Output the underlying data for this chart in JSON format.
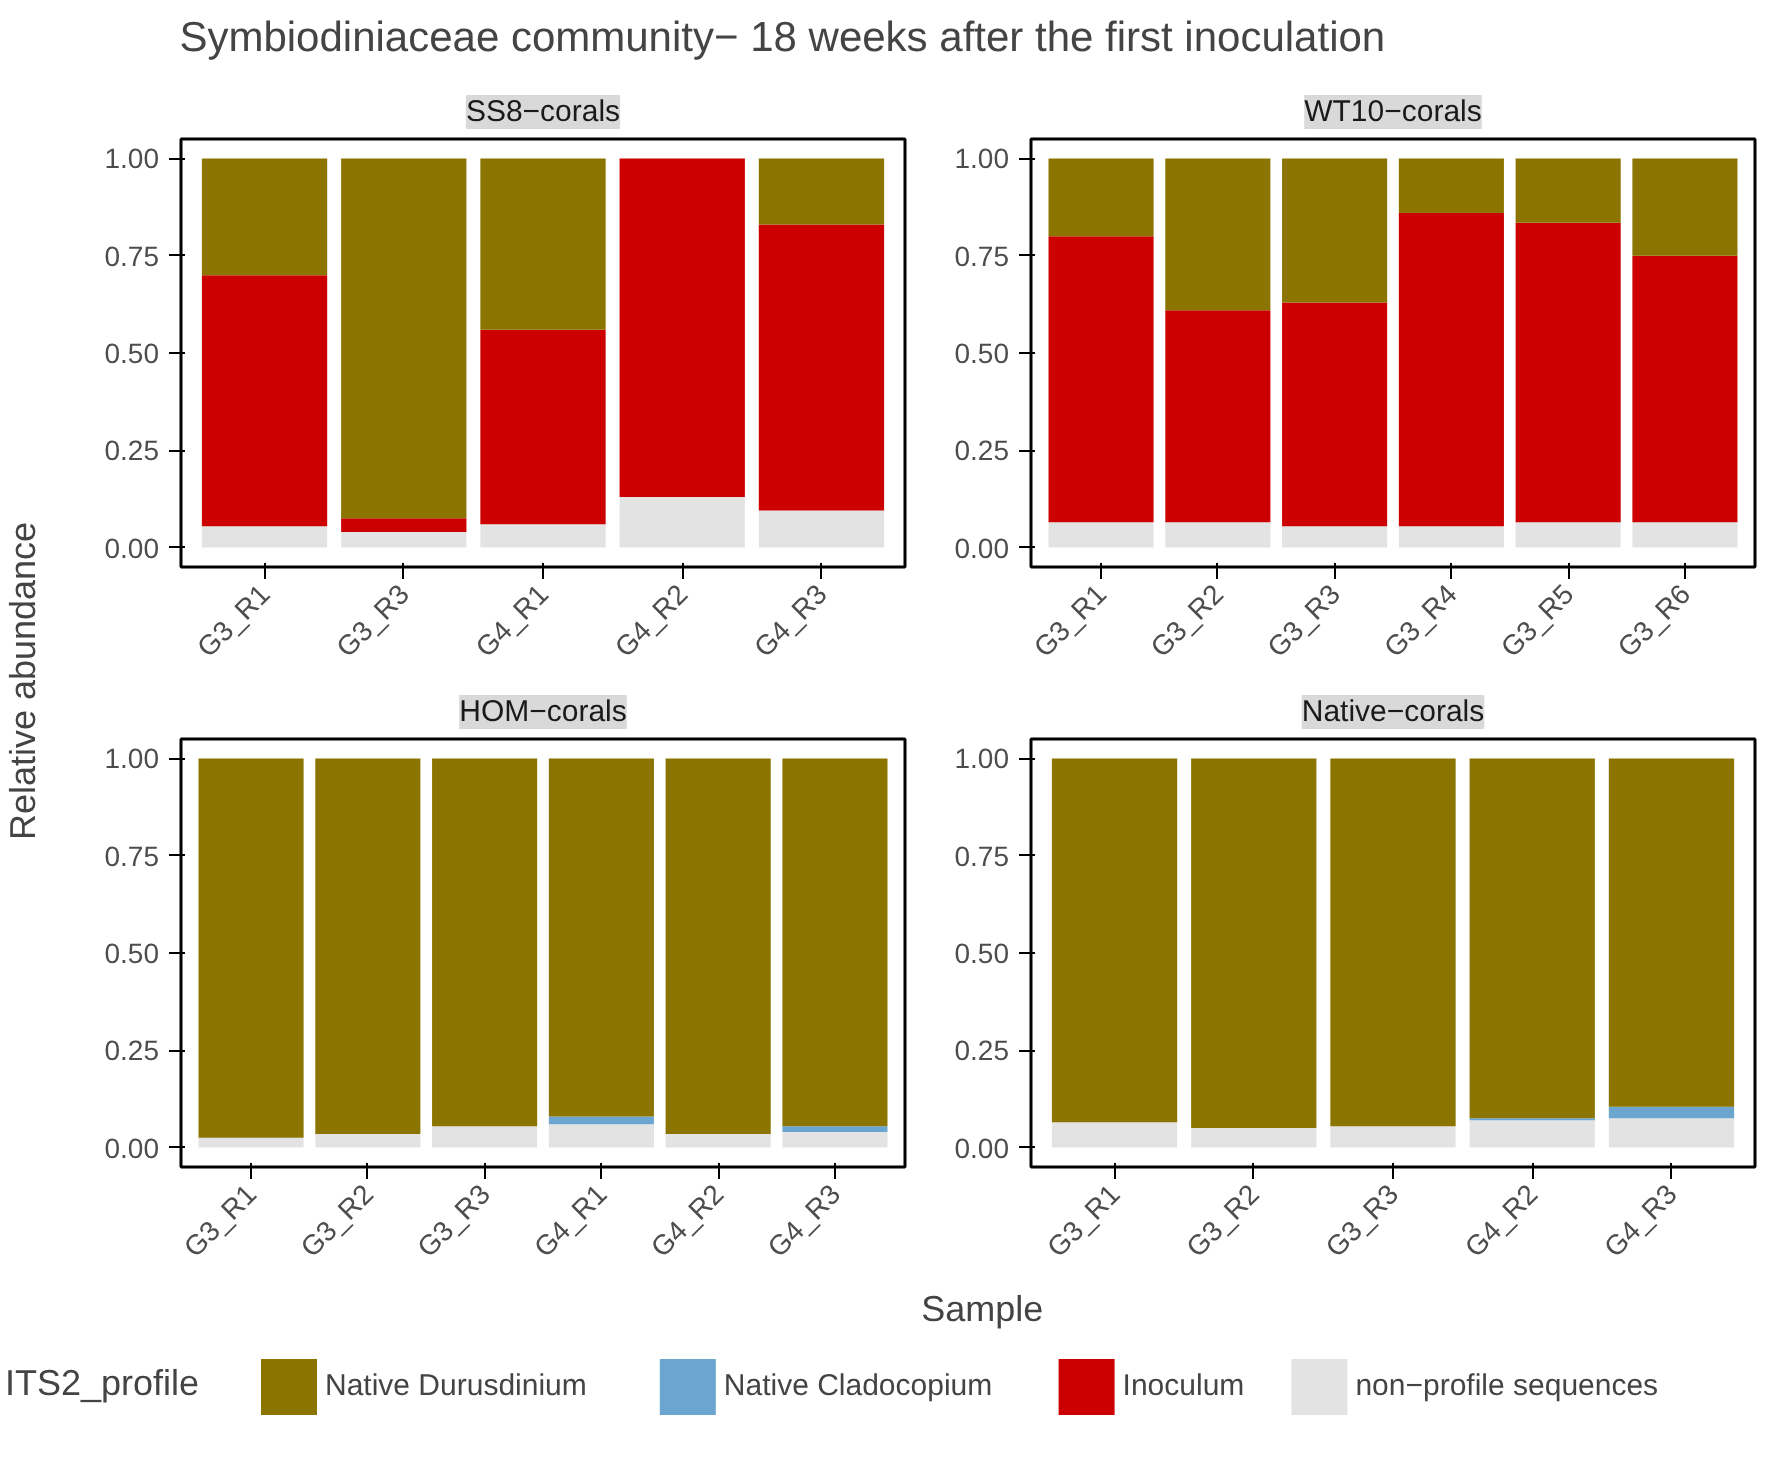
{
  "chart_data": [
    {
      "type": "bar",
      "stacked": true,
      "title": "SS8−corals",
      "annotations": [
        "Symbiodiniaceae community− 18 weeks after the first inoculation"
      ],
      "ylabel": "Relative abundance",
      "legend": "bottom",
      "legend_title": "ITS2_profile",
      "grid": false,
      "categories": [
        "G3_R1",
        "G3_R3",
        "G4_R1",
        "G4_R2",
        "G4_R3"
      ],
      "ylim": [
        -0.05,
        1.05
      ],
      "yticks": [
        {
          "value": 0,
          "label": "0.00"
        },
        {
          "value": 0.25,
          "label": "0.25"
        },
        {
          "value": 0.5,
          "label": "0.50"
        },
        {
          "value": 0.75,
          "label": "0.75"
        },
        {
          "value": 1,
          "label": "1.00"
        }
      ],
      "series": [
        {
          "name": "non−profile sequences",
          "color": "#e3e3e3",
          "values": [
            0.055,
            0.04,
            0.06,
            0.13,
            0.095
          ]
        },
        {
          "name": "Inoculum",
          "color": "#cc0000",
          "values": [
            0.645,
            0.035,
            0.5,
            0.87,
            0.735
          ]
        },
        {
          "name": "Native Cladocopium",
          "color": "#6aa6cf",
          "values": [
            0,
            0,
            0,
            0,
            0
          ]
        },
        {
          "name": "Native Durusdinium",
          "color": "#8b7500",
          "values": [
            0.3,
            0.925,
            0.44,
            0,
            0.17
          ]
        }
      ]
    },
    {
      "type": "bar",
      "stacked": true,
      "title": "WT10−corals",
      "grid": false,
      "categories": [
        "G3_R1",
        "G3_R2",
        "G3_R3",
        "G3_R4",
        "G3_R5",
        "G3_R6"
      ],
      "ylim": [
        -0.05,
        1.05
      ],
      "yticks": [
        {
          "value": 0,
          "label": "0.00"
        },
        {
          "value": 0.25,
          "label": "0.25"
        },
        {
          "value": 0.5,
          "label": "0.50"
        },
        {
          "value": 0.75,
          "label": "0.75"
        },
        {
          "value": 1,
          "label": "1.00"
        }
      ],
      "series": [
        {
          "color": "#e3e3e3",
          "values": [
            0.065,
            0.065,
            0.055,
            0.055,
            0.065,
            0.065
          ]
        },
        {
          "color": "#cc0000",
          "values": [
            0.735,
            0.545,
            0.575,
            0.805,
            0.77,
            0.685
          ]
        },
        {
          "color": "#6aa6cf",
          "values": [
            0,
            0,
            0,
            0,
            0,
            0
          ]
        },
        {
          "color": "#8b7500",
          "values": [
            0.2,
            0.39,
            0.37,
            0.14,
            0.165,
            0.25
          ]
        }
      ]
    },
    {
      "type": "bar",
      "stacked": true,
      "title": "HOM−corals",
      "xlabel": "Sample",
      "grid": false,
      "categories": [
        "G3_R1",
        "G3_R2",
        "G3_R3",
        "G4_R1",
        "G4_R2",
        "G4_R3"
      ],
      "ylim": [
        -0.05,
        1.05
      ],
      "yticks": [
        {
          "value": 0,
          "label": "0.00"
        },
        {
          "value": 0.25,
          "label": "0.25"
        },
        {
          "value": 0.5,
          "label": "0.50"
        },
        {
          "value": 0.75,
          "label": "0.75"
        },
        {
          "value": 1,
          "label": "1.00"
        }
      ],
      "series": [
        {
          "color": "#e3e3e3",
          "values": [
            0.025,
            0.035,
            0.055,
            0.06,
            0.035,
            0.04
          ]
        },
        {
          "color": "#cc0000",
          "values": [
            0,
            0,
            0,
            0,
            0,
            0
          ]
        },
        {
          "color": "#6aa6cf",
          "values": [
            0,
            0,
            0,
            0.02,
            0,
            0.015
          ]
        },
        {
          "color": "#8b7500",
          "values": [
            0.975,
            0.965,
            0.945,
            0.92,
            0.965,
            0.945
          ]
        }
      ]
    },
    {
      "type": "bar",
      "stacked": true,
      "title": "Native−corals",
      "grid": false,
      "categories": [
        "G3_R1",
        "G3_R2",
        "G3_R3",
        "G4_R2",
        "G4_R3"
      ],
      "ylim": [
        -0.05,
        1.05
      ],
      "yticks": [
        {
          "value": 0,
          "label": "0.00"
        },
        {
          "value": 0.25,
          "label": "0.25"
        },
        {
          "value": 0.5,
          "label": "0.50"
        },
        {
          "value": 0.75,
          "label": "0.75"
        },
        {
          "value": 1,
          "label": "1.00"
        }
      ],
      "series": [
        {
          "color": "#e3e3e3",
          "values": [
            0.065,
            0.05,
            0.055,
            0.07,
            0.075
          ]
        },
        {
          "color": "#cc0000",
          "values": [
            0,
            0,
            0,
            0,
            0
          ]
        },
        {
          "color": "#6aa6cf",
          "values": [
            0,
            0,
            0,
            0.005,
            0.03
          ]
        },
        {
          "color": "#8b7500",
          "values": [
            0.935,
            0.95,
            0.945,
            0.925,
            0.895
          ]
        }
      ]
    }
  ]
}
